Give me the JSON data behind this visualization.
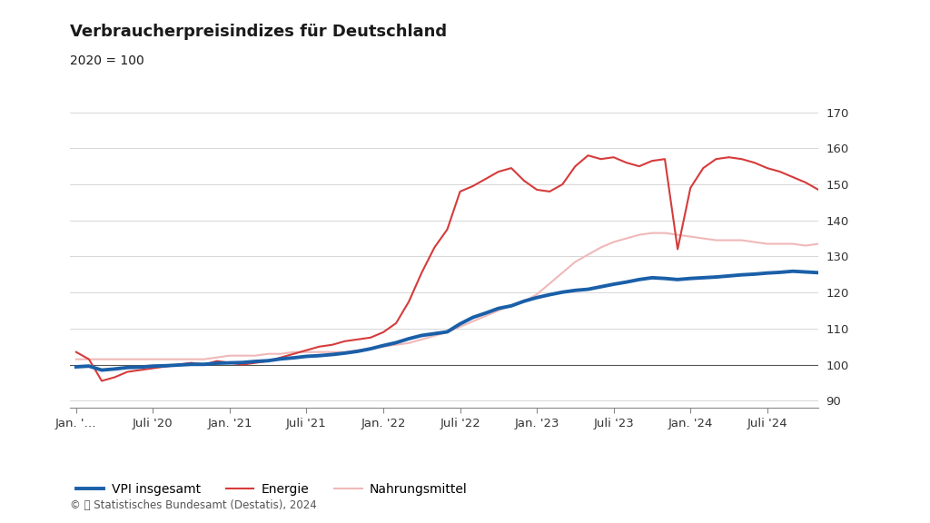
{
  "title": "Verbraucherpreisindizes für Deutschland",
  "subtitle": "2020 = 100",
  "footer": "© 📊 Statistisches Bundesamt (Destatis), 2024",
  "background_color": "#ffffff",
  "ylim": [
    88,
    175
  ],
  "yticks": [
    90,
    100,
    110,
    120,
    130,
    140,
    150,
    160,
    170
  ],
  "series": {
    "vpi": {
      "label": "VPI insgesamt",
      "color": "#1a5fa8",
      "linewidth": 2.8,
      "values": [
        99.4,
        99.6,
        98.5,
        98.8,
        99.2,
        99.3,
        99.6,
        99.7,
        99.9,
        100.1,
        100.1,
        100.4,
        100.5,
        100.6,
        100.9,
        101.1,
        101.6,
        101.9,
        102.3,
        102.5,
        102.8,
        103.2,
        103.7,
        104.4,
        105.3,
        106.1,
        107.2,
        108.1,
        108.6,
        109.1,
        111.3,
        113.1,
        114.3,
        115.6,
        116.3,
        117.6,
        118.6,
        119.4,
        120.1,
        120.6,
        120.9,
        121.6,
        122.3,
        122.9,
        123.6,
        124.1,
        123.9,
        123.6,
        123.9,
        124.1,
        124.3,
        124.6,
        124.9,
        125.1,
        125.4,
        125.6,
        125.9,
        125.7,
        125.5
      ]
    },
    "energie": {
      "label": "Energie",
      "color": "#d63b3b",
      "linewidth": 1.5,
      "values": [
        103.5,
        101.5,
        95.5,
        96.5,
        98.0,
        98.5,
        99.0,
        99.5,
        100.0,
        100.5,
        100.0,
        101.0,
        100.5,
        100.0,
        100.5,
        101.0,
        102.0,
        103.0,
        104.0,
        105.0,
        105.5,
        106.5,
        107.0,
        107.5,
        109.0,
        111.5,
        117.5,
        125.5,
        132.5,
        137.5,
        148.0,
        149.5,
        151.5,
        153.5,
        154.5,
        151.0,
        148.5,
        148.0,
        150.0,
        155.0,
        158.0,
        157.0,
        157.5,
        156.0,
        155.0,
        156.5,
        157.0,
        132.0,
        149.0,
        154.5,
        157.0,
        157.5,
        157.0,
        156.0,
        154.5,
        153.5,
        152.0,
        150.5,
        148.5
      ]
    },
    "nahrung": {
      "label": "Nahrungsmittel",
      "color": "#f0b8b8",
      "linewidth": 1.5,
      "values": [
        101.5,
        101.5,
        101.5,
        101.5,
        101.5,
        101.5,
        101.5,
        101.5,
        101.5,
        101.5,
        101.5,
        102.0,
        102.5,
        102.5,
        102.5,
        103.0,
        103.0,
        103.5,
        103.5,
        103.5,
        103.5,
        103.5,
        104.0,
        104.5,
        105.0,
        105.5,
        106.0,
        107.0,
        108.0,
        109.0,
        110.5,
        112.0,
        113.5,
        115.0,
        116.5,
        117.5,
        119.5,
        122.5,
        125.5,
        128.5,
        130.5,
        132.5,
        134.0,
        135.0,
        136.0,
        136.5,
        136.5,
        136.0,
        135.5,
        135.0,
        134.5,
        134.5,
        134.5,
        134.0,
        133.5,
        133.5,
        133.5,
        133.0,
        133.5
      ]
    }
  },
  "xtick_labels": [
    "Jan. '…",
    "Juli '20",
    "Jan. '21",
    "Juli '21",
    "Jan. '22",
    "Juli '22",
    "Jan. '23",
    "Juli '23",
    "Jan. '24",
    "Juli '24"
  ],
  "xtick_positions": [
    0,
    6,
    12,
    18,
    24,
    30,
    36,
    42,
    48,
    54
  ],
  "grid_color": "#d0d0d0",
  "title_fontsize": 13,
  "subtitle_fontsize": 10,
  "tick_fontsize": 9.5,
  "legend_fontsize": 10
}
